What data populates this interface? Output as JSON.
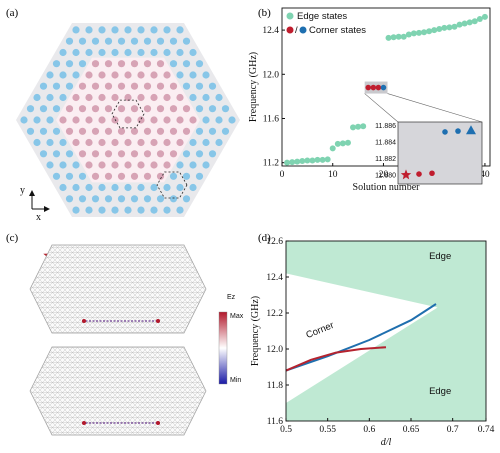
{
  "panel_labels": {
    "a": "(a)",
    "b": "(b)",
    "c": "(c)",
    "d": "(d)"
  },
  "panel_a": {
    "axis_y": "y",
    "axis_x": "x"
  },
  "panel_c": {
    "colorbar_title": "Ez",
    "colorbar_max": "Max",
    "colorbar_min": "Min",
    "colors": {
      "star": "#b5232f",
      "triangle": "#1f6fae"
    }
  },
  "colors": {
    "edge": "#7fd3b1",
    "corner_red": "#c01d2e",
    "corner_blue": "#1e6fb0",
    "site_blue": "#87c6e8",
    "site_pink": "#d7a3b5",
    "band_green": "#bfe9d3",
    "line_blue": "#1f6fae",
    "line_red": "#b5232f"
  },
  "chart_data": [
    {
      "type": "scatter",
      "panel": "b",
      "xlabel": "Solution number",
      "ylabel": "Frequency (GHz)",
      "xlim": [
        0,
        41
      ],
      "ylim": [
        11.17,
        12.6
      ],
      "xticks": [
        "0",
        "10",
        "20",
        "30",
        "40"
      ],
      "yticks": [
        "11.2",
        "11.6",
        "12.0",
        "12.4"
      ],
      "legend": {
        "edge": "Edge states",
        "corner_sep": "/",
        "corner": "Corner states"
      },
      "series": [
        {
          "name": "Edge states",
          "x": [
            1,
            2,
            3,
            4,
            5,
            6,
            7,
            8,
            9,
            10,
            11,
            12,
            13,
            14,
            15,
            16,
            21,
            22,
            23,
            24,
            25,
            26,
            27,
            28,
            29,
            30,
            31,
            32,
            33,
            34,
            35,
            36,
            37,
            38,
            39,
            40
          ],
          "y": [
            11.2,
            11.205,
            11.21,
            11.215,
            11.22,
            11.22,
            11.225,
            11.225,
            11.23,
            11.33,
            11.37,
            11.375,
            11.38,
            11.52,
            11.525,
            11.53,
            12.33,
            12.335,
            12.34,
            12.34,
            12.36,
            12.37,
            12.375,
            12.38,
            12.39,
            12.4,
            12.41,
            12.42,
            12.425,
            12.43,
            12.45,
            12.46,
            12.47,
            12.48,
            12.5,
            12.52
          ]
        },
        {
          "name": "Corner states",
          "x": [
            17,
            18,
            19
          ],
          "y": [
            11.88,
            11.88,
            11.88
          ],
          "color": "red"
        },
        {
          "name": "Corner states",
          "x": [
            20
          ],
          "y": [
            11.88
          ],
          "color": "blue"
        }
      ],
      "inset": {
        "ylim": [
          11.879,
          11.8865
        ],
        "yticks": [
          "11.880",
          "11.882",
          "11.884",
          "11.886"
        ],
        "points": [
          {
            "x": 1,
            "y": 11.8801,
            "marker": "star",
            "color": "red"
          },
          {
            "x": 2,
            "y": 11.8802,
            "marker": "circle",
            "color": "red"
          },
          {
            "x": 3,
            "y": 11.8803,
            "marker": "circle",
            "color": "red"
          },
          {
            "x": 4,
            "y": 11.8853,
            "marker": "circle",
            "color": "blue"
          },
          {
            "x": 5,
            "y": 11.8854,
            "marker": "circle",
            "color": "blue"
          },
          {
            "x": 6,
            "y": 11.8855,
            "marker": "triangle",
            "color": "blue"
          }
        ]
      }
    },
    {
      "type": "line",
      "panel": "d",
      "xlabel": "d/l",
      "ylabel": "Frequency (GHz)",
      "xlim": [
        0.5,
        0.74
      ],
      "ylim": [
        11.6,
        12.6
      ],
      "xticks": [
        "0.5",
        "0.55",
        "0.6",
        "0.65",
        "0.7",
        "0.74"
      ],
      "yticks": [
        "11.6",
        "11.8",
        "12.0",
        "12.2",
        "12.4",
        "12.6"
      ],
      "annotations": [
        "Edge",
        "Edge",
        "Corner"
      ],
      "bands": [
        {
          "name": "Edge",
          "upper_edge": {
            "x": [
              0.5,
              0.74
            ],
            "y": [
              12.42,
              12.17
            ]
          }
        },
        {
          "name": "Edge",
          "lower_edge": {
            "x": [
              0.5,
              0.74
            ],
            "y": [
              11.7,
              12.4
            ]
          }
        }
      ],
      "series": [
        {
          "name": "Corner",
          "color": "blue",
          "x": [
            0.5,
            0.55,
            0.6,
            0.65,
            0.68
          ],
          "y": [
            11.88,
            11.96,
            12.05,
            12.16,
            12.25
          ]
        },
        {
          "name": "Corner",
          "color": "red",
          "x": [
            0.5,
            0.53,
            0.56,
            0.59,
            0.62
          ],
          "y": [
            11.88,
            11.94,
            11.98,
            12.0,
            12.01
          ]
        }
      ]
    }
  ]
}
